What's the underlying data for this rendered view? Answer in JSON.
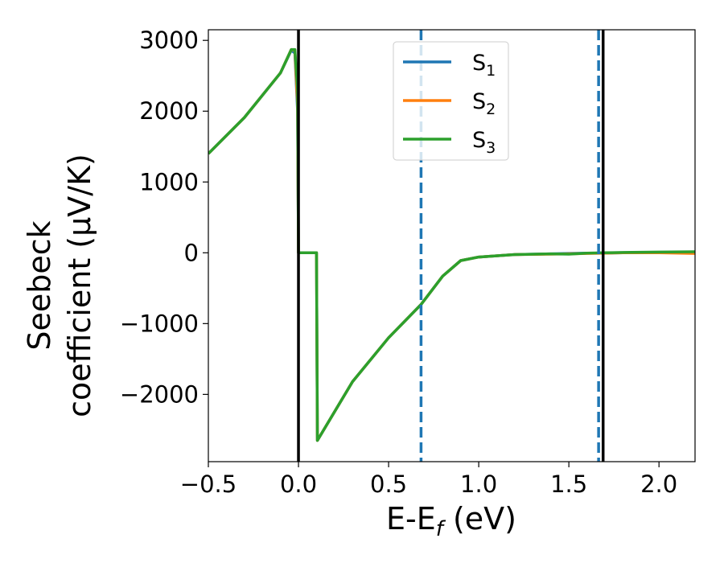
{
  "chart_data": {
    "type": "line",
    "xlabel": "E-E_f (eV)",
    "xlabel_main": "E-E",
    "xlabel_sub": "f",
    "xlabel_suffix": " (eV)",
    "ylabel_line1": "Seebeck",
    "ylabel_line2": "coefficient  (μV/K)",
    "xlim": [
      -0.5,
      2.2
    ],
    "ylim": [
      -2950,
      3150
    ],
    "xticks": [
      -0.5,
      0.0,
      0.5,
      1.0,
      1.5,
      2.0
    ],
    "xtick_labels": [
      "−0.5",
      "0.0",
      "0.5",
      "1.0",
      "1.5",
      "2.0"
    ],
    "yticks": [
      3000,
      2000,
      1000,
      0,
      -1000,
      -2000
    ],
    "ytick_labels": [
      "3000",
      "2000",
      "1000",
      "0",
      "−1000",
      "−2000"
    ],
    "grid": false,
    "legend_position": "top-center",
    "series": [
      {
        "name": "S_1",
        "label_main": "S",
        "label_sub": "1",
        "color": "#1f77b4",
        "x": [
          -0.5,
          -0.3,
          -0.1,
          -0.04,
          -0.02,
          -0.005,
          0.0,
          0.1,
          0.105,
          0.3,
          0.5,
          0.68,
          0.8,
          0.9,
          1.0,
          1.2,
          1.4,
          1.5,
          1.6,
          1.7,
          1.8,
          2.0,
          2.2
        ],
        "y": [
          1400,
          1910,
          2540,
          2860,
          2820,
          2000,
          0,
          0,
          -2650,
          -1820,
          -1200,
          -730,
          -330,
          -110,
          -60,
          -25,
          -15,
          -10,
          -5,
          -5,
          0,
          5,
          10
        ]
      },
      {
        "name": "S_2",
        "label_main": "S",
        "label_sub": "2",
        "color": "#ff7f0e",
        "x": [
          -0.5,
          -0.3,
          -0.1,
          -0.04,
          -0.02,
          -0.005,
          0.0,
          0.1,
          0.105,
          0.3,
          0.5,
          0.68,
          0.8,
          0.9,
          1.0,
          1.2,
          1.4,
          1.5,
          1.6,
          1.7,
          1.8,
          2.0,
          2.2
        ],
        "y": [
          1400,
          1910,
          2540,
          2870,
          2860,
          2100,
          0,
          0,
          -2650,
          -1820,
          -1200,
          -730,
          -330,
          -110,
          -60,
          -25,
          -20,
          -15,
          -10,
          -5,
          0,
          0,
          -10
        ]
      },
      {
        "name": "S_3",
        "label_main": "S",
        "label_sub": "3",
        "color": "#2ca02c",
        "x": [
          -0.5,
          -0.3,
          -0.1,
          -0.04,
          -0.02,
          -0.005,
          0.0,
          0.1,
          0.105,
          0.3,
          0.5,
          0.68,
          0.8,
          0.9,
          1.0,
          1.2,
          1.4,
          1.5,
          1.6,
          1.7,
          1.8,
          2.0,
          2.2
        ],
        "y": [
          1400,
          1910,
          2540,
          2870,
          2870,
          2300,
          0,
          0,
          -2650,
          -1820,
          -1200,
          -730,
          -330,
          -110,
          -60,
          -25,
          -15,
          -20,
          -5,
          0,
          5,
          10,
          15
        ]
      }
    ],
    "vlines": [
      {
        "x": 0.0,
        "color": "#000000",
        "style": "solid"
      },
      {
        "x": 1.69,
        "color": "#000000",
        "style": "solid"
      },
      {
        "x": 0.68,
        "color": "#1f77b4",
        "style": "dashed"
      },
      {
        "x": 1.665,
        "color": "#1f77b4",
        "style": "dashed"
      }
    ]
  }
}
